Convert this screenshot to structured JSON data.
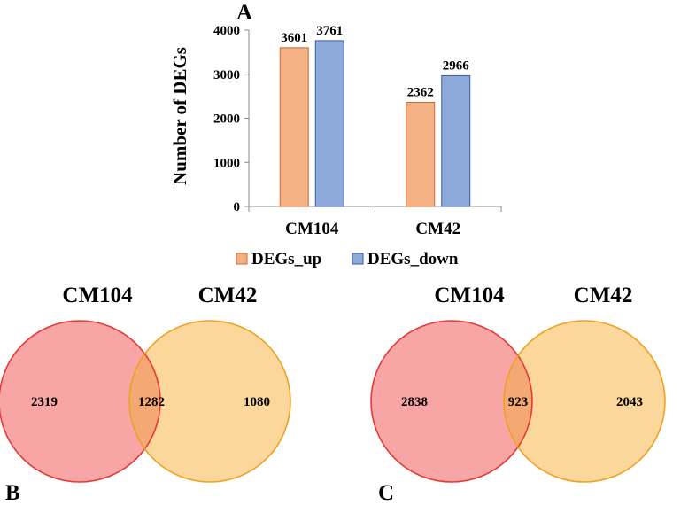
{
  "panel_labels": {
    "a": "A",
    "b": "B",
    "c": "C"
  },
  "colors": {
    "up_fill": "#f4b183",
    "up_stroke": "#c96a2f",
    "down_fill": "#8eaadb",
    "down_stroke": "#3b5ba0",
    "venn_left_fill": "#f8a5a5",
    "venn_left_stroke": "#e53935",
    "venn_right_fill": "#fbd79b",
    "venn_right_stroke": "#f0a020",
    "venn_overlap_fill": "#f4a874"
  },
  "chart_data": [
    {
      "type": "bar",
      "title": "",
      "xlabel": "",
      "ylabel": "Number of DEGs",
      "ylim": [
        0,
        4000
      ],
      "yticks": [
        0,
        1000,
        2000,
        3000,
        4000
      ],
      "categories": [
        "CM104",
        "CM42"
      ],
      "series": [
        {
          "name": "DEGs_up",
          "values": [
            3601,
            2362
          ]
        },
        {
          "name": "DEGs_down",
          "values": [
            3761,
            2966
          ]
        }
      ],
      "legend_position": "bottom"
    },
    {
      "type": "venn",
      "panel": "B",
      "sets": [
        "CM104",
        "CM42"
      ],
      "only_left": 2319,
      "overlap": 1282,
      "only_right": 1080
    },
    {
      "type": "venn",
      "panel": "C",
      "sets": [
        "CM104",
        "CM42"
      ],
      "only_left": 2838,
      "overlap": 923,
      "only_right": 2043
    }
  ]
}
